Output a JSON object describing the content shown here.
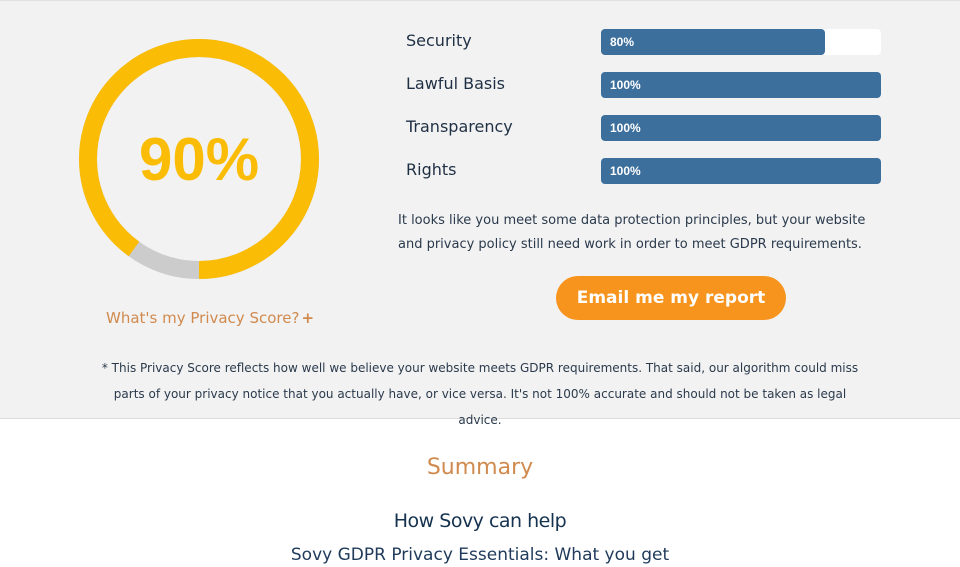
{
  "score": {
    "value_label": "90%",
    "fraction": 0.9,
    "ring_color": "#fbbc05",
    "track_color": "#cccccc",
    "info_link": "What's my Privacy Score?",
    "info_link_icon": "plus-icon",
    "info_link_glyph": "+"
  },
  "metrics": [
    {
      "label": "Security",
      "value_label": "80%",
      "fraction": 0.8
    },
    {
      "label": "Lawful Basis",
      "value_label": "100%",
      "fraction": 1.0
    },
    {
      "label": "Transparency",
      "value_label": "100%",
      "fraction": 1.0
    },
    {
      "label": "Rights",
      "value_label": "100%",
      "fraction": 1.0
    }
  ],
  "bar_color": "#3c6f9c",
  "verdict": "It looks like you meet some data protection principles, but your website and privacy policy still need work in order to meet GDPR requirements.",
  "email_button": "Email me my report",
  "disclaimer": "* This Privacy Score reflects how well we believe your website meets GDPR requirements. That said, our algorithm could miss parts of your privacy notice that you actually have, or vice versa. It's not 100% accurate and should not be taken as legal advice.",
  "summary": {
    "title": "Summary",
    "help_title": "How Sovy can help",
    "essentials_title": "Sovy GDPR Privacy Essentials: What you get"
  }
}
